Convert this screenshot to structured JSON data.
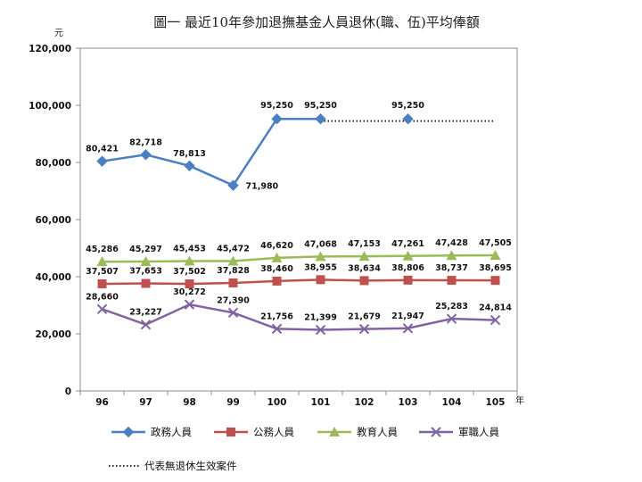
{
  "chart_data": {
    "type": "line",
    "title": "圖一  最近10年參加退撫基金人員退休(職、伍)平均俸額",
    "ylabel": "元",
    "xlabel": "年",
    "ylim": [
      0,
      120000
    ],
    "yticks": [
      "0",
      "20,000",
      "40,000",
      "60,000",
      "80,000",
      "100,000",
      "120,000"
    ],
    "yticks_values": [
      0,
      20000,
      40000,
      60000,
      80000,
      100000,
      120000
    ],
    "categories": [
      "96",
      "97",
      "98",
      "99",
      "100",
      "101",
      "102",
      "103",
      "104",
      "105"
    ],
    "legend_position": "bottom",
    "grid": false,
    "series": [
      {
        "name": "政務人員",
        "color": "#4a7fc1",
        "marker": "diamond",
        "values": [
          80421,
          82718,
          78813,
          71980,
          95250,
          95250,
          null,
          95250,
          null,
          null
        ],
        "labels": [
          "80,421",
          "82,718",
          "78,813",
          "71,980",
          "95,250",
          "95,250",
          "",
          "95,250",
          "",
          ""
        ],
        "dotted_from": 5,
        "dotted_value": 94500
      },
      {
        "name": "公務人員",
        "color": "#c0504d",
        "marker": "square",
        "values": [
          37507,
          37653,
          37502,
          37828,
          38460,
          38955,
          38634,
          38806,
          38737,
          38695
        ],
        "labels": [
          "37,507",
          "37,653",
          "37,502",
          "37,828",
          "38,460",
          "38,955",
          "38,634",
          "38,806",
          "38,737",
          "38,695"
        ]
      },
      {
        "name": "教育人員",
        "color": "#9bbb59",
        "marker": "triangle",
        "values": [
          45286,
          45297,
          45453,
          45472,
          46620,
          47068,
          47153,
          47261,
          47428,
          47505
        ],
        "labels": [
          "45,286",
          "45,297",
          "45,453",
          "45,472",
          "46,620",
          "47,068",
          "47,153",
          "47,261",
          "47,428",
          "47,505"
        ]
      },
      {
        "name": "軍職人員",
        "color": "#8064a2",
        "marker": "x",
        "values": [
          28660,
          23227,
          30272,
          27390,
          21756,
          21399,
          21679,
          21947,
          25283,
          24814
        ],
        "labels": [
          "28,660",
          "23,227",
          "30,272",
          "27,390",
          "21,756",
          "21,399",
          "21,679",
          "21,947",
          "25,283",
          "24,814"
        ]
      }
    ],
    "note": "代表無退休生效案件"
  }
}
